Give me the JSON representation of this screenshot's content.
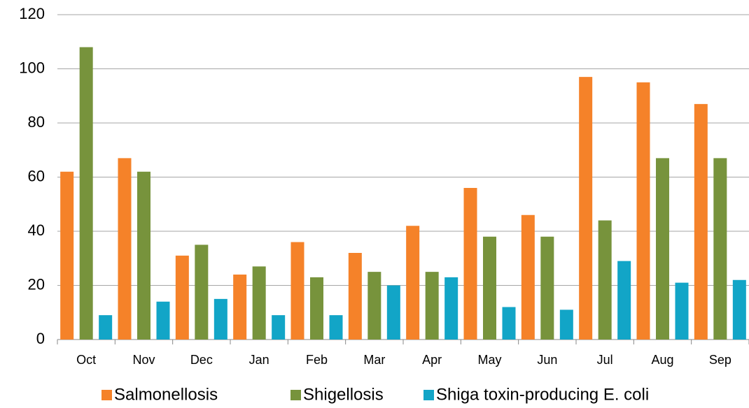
{
  "chart_data": {
    "type": "bar",
    "categories": [
      "Oct",
      "Nov",
      "Dec",
      "Jan",
      "Feb",
      "Mar",
      "Apr",
      "May",
      "Jun",
      "Jul",
      "Aug",
      "Sep"
    ],
    "series": [
      {
        "name": "Salmonellosis",
        "color": "#f58229",
        "values": [
          62,
          67,
          31,
          24,
          36,
          32,
          42,
          56,
          46,
          97,
          95,
          87
        ]
      },
      {
        "name": "Shigellosis",
        "color": "#77933c",
        "values": [
          108,
          62,
          35,
          27,
          23,
          25,
          25,
          38,
          38,
          44,
          67,
          67
        ]
      },
      {
        "name": "Shiga toxin-producing E. coli",
        "color": "#12a5c7",
        "values": [
          9,
          14,
          15,
          9,
          9,
          20,
          23,
          12,
          11,
          29,
          21,
          22
        ]
      }
    ],
    "ylim": [
      0,
      120
    ],
    "yticks": [
      0,
      20,
      40,
      60,
      80,
      100,
      120
    ],
    "grid": true,
    "legend": "bottom"
  }
}
